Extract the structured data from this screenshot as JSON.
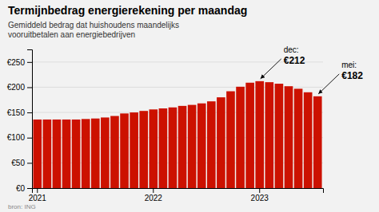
{
  "chart_data": {
    "type": "bar",
    "title": "Termijnbedrag energierekening per maandag",
    "subtitle": "Gemiddeld bedrag dat huishoudens maandelijks\nvooruitbetalen aan energiebedrijven",
    "source": "bron: ING",
    "categories": [
      "2021",
      null,
      null,
      null,
      null,
      null,
      null,
      null,
      null,
      null,
      null,
      null,
      "2022",
      null,
      null,
      null,
      null,
      null,
      null,
      null,
      null,
      null,
      null,
      "2023",
      null,
      null,
      null,
      null,
      null,
      null
    ],
    "values": [
      136,
      136,
      136,
      136,
      136,
      137,
      138,
      140,
      143,
      148,
      150,
      153,
      156,
      158,
      160,
      163,
      165,
      168,
      172,
      180,
      192,
      201,
      209,
      212,
      210,
      207,
      202,
      197,
      190,
      182
    ],
    "color": "#CC1100",
    "ylim": [
      0,
      275
    ],
    "yticks": [
      {
        "value": 0,
        "label": "€0"
      },
      {
        "value": 50,
        "label": "€50"
      },
      {
        "value": 100,
        "label": "€100"
      },
      {
        "value": 150,
        "label": "€150"
      },
      {
        "value": 200,
        "label": "€200"
      },
      {
        "value": 250,
        "label": "€250"
      }
    ],
    "grid": true,
    "annotations": [
      {
        "text": "dec:",
        "label": "€212",
        "value": 212
      },
      {
        "text": "mei:",
        "label": "€182",
        "value": 182
      }
    ]
  }
}
